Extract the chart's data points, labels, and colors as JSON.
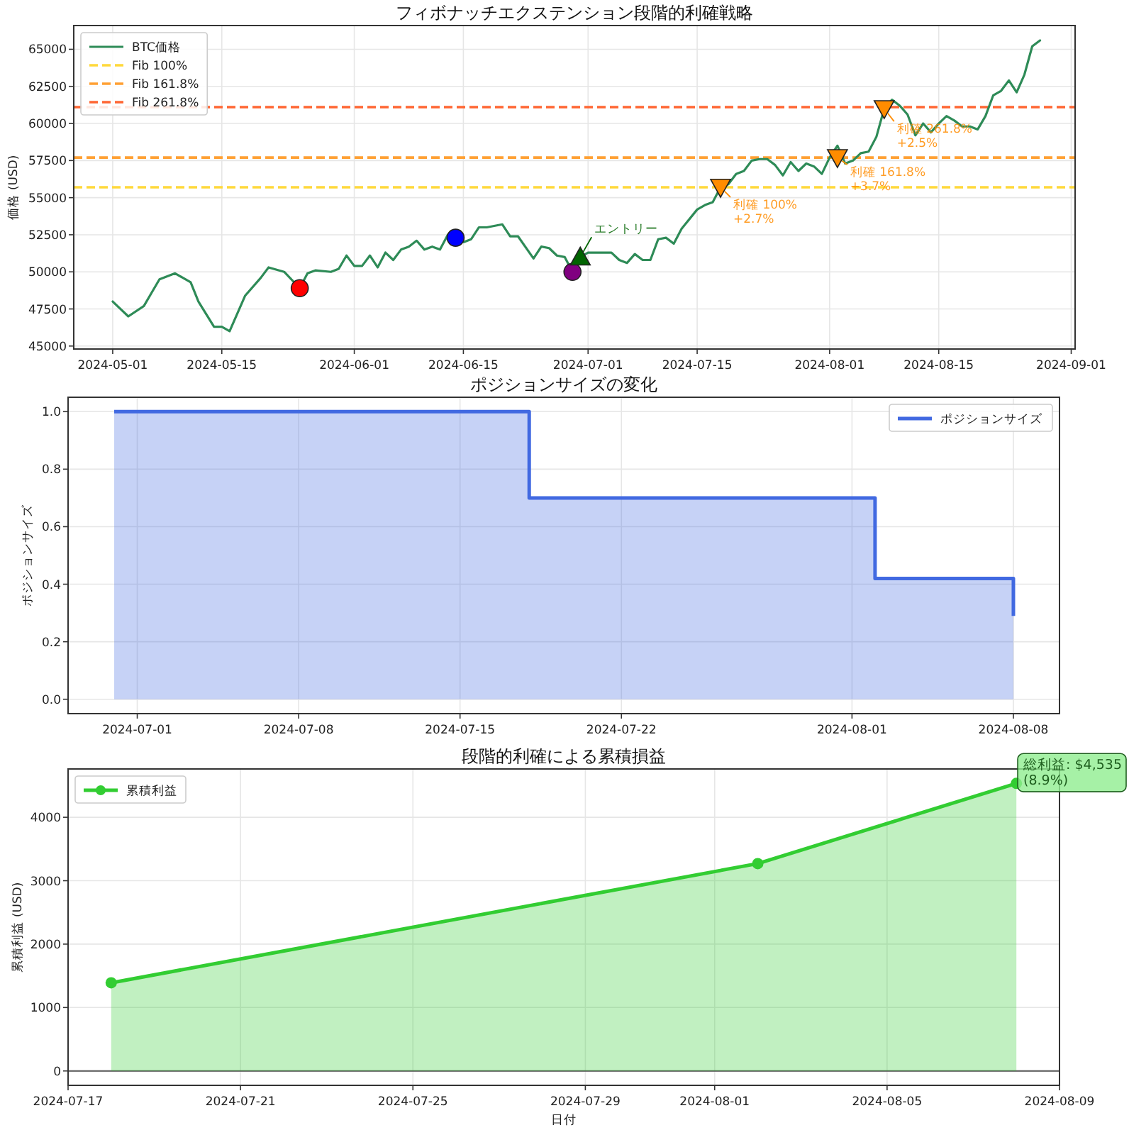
{
  "chart_data": [
    {
      "type": "line",
      "title": "フィボナッチエクステンション段階的利確戦略",
      "ylabel": "価格 (USD)",
      "xlim": [
        "2024-04-26",
        "2024-09-01T12:00"
      ],
      "ylim": [
        44800,
        66600
      ],
      "xticks": [
        "2024-05-01",
        "2024-05-15",
        "2024-06-01",
        "2024-06-15",
        "2024-07-01",
        "2024-07-15",
        "2024-08-01",
        "2024-08-15",
        "2024-09-01"
      ],
      "yticks": [
        45000,
        47500,
        50000,
        52500,
        55000,
        57500,
        60000,
        62500,
        65000
      ],
      "grid": true,
      "legend": "top left",
      "ref_lines": [
        {
          "axis": "y",
          "value": 55700,
          "label": "Fib 100%",
          "color": "#ffd93b",
          "line_style": "dashed"
        },
        {
          "axis": "y",
          "value": 57700,
          "label": "Fib 161.8%",
          "color": "#ffa033",
          "line_style": "dashed"
        },
        {
          "axis": "y",
          "value": 61100,
          "label": "Fib 261.8%",
          "color": "#ff6633",
          "line_style": "dashed"
        }
      ],
      "series": [
        {
          "name": "BTC価格",
          "color": "#2e8b57",
          "x": [
            "2024-05-01",
            "2024-05-03",
            "2024-05-05",
            "2024-05-06",
            "2024-05-07",
            "2024-05-08",
            "2024-05-09",
            "2024-05-11",
            "2024-05-12",
            "2024-05-14",
            "2024-05-15",
            "2024-05-16",
            "2024-05-18",
            "2024-05-20",
            "2024-05-21",
            "2024-05-23",
            "2024-05-25",
            "2024-05-26",
            "2024-05-27",
            "2024-05-29",
            "2024-05-30",
            "2024-05-31",
            "2024-06-01",
            "2024-06-02",
            "2024-06-03",
            "2024-06-04",
            "2024-06-05",
            "2024-06-06",
            "2024-06-07",
            "2024-06-08",
            "2024-06-09",
            "2024-06-10",
            "2024-06-11",
            "2024-06-12",
            "2024-06-13",
            "2024-06-14",
            "2024-06-15",
            "2024-06-16",
            "2024-06-17",
            "2024-06-18",
            "2024-06-20",
            "2024-06-21",
            "2024-06-22",
            "2024-06-24",
            "2024-06-25",
            "2024-06-26",
            "2024-06-27",
            "2024-06-28",
            "2024-06-29",
            "2024-06-30",
            "2024-07-01",
            "2024-07-03",
            "2024-07-04",
            "2024-07-05",
            "2024-07-06",
            "2024-07-07",
            "2024-07-08",
            "2024-07-09",
            "2024-07-10",
            "2024-07-11",
            "2024-07-12",
            "2024-07-13",
            "2024-07-15",
            "2024-07-16",
            "2024-07-17",
            "2024-07-18",
            "2024-07-19",
            "2024-07-20",
            "2024-07-21",
            "2024-07-22",
            "2024-07-23",
            "2024-07-24",
            "2024-07-25",
            "2024-07-26",
            "2024-07-27",
            "2024-07-28",
            "2024-07-29",
            "2024-07-30",
            "2024-07-31",
            "2024-08-01",
            "2024-08-02",
            "2024-08-03",
            "2024-08-04",
            "2024-08-05",
            "2024-08-06",
            "2024-08-07",
            "2024-08-08",
            "2024-08-09",
            "2024-08-10",
            "2024-08-11",
            "2024-08-12",
            "2024-08-13",
            "2024-08-14",
            "2024-08-15",
            "2024-08-16",
            "2024-08-17",
            "2024-08-18",
            "2024-08-19",
            "2024-08-20",
            "2024-08-21",
            "2024-08-22",
            "2024-08-23",
            "2024-08-24",
            "2024-08-25",
            "2024-08-26",
            "2024-08-27",
            "2024-08-28"
          ],
          "values": [
            48000,
            47000,
            47700,
            48600,
            49500,
            49700,
            49900,
            49300,
            48000,
            46300,
            46300,
            46000,
            48400,
            49600,
            50300,
            50000,
            48900,
            49900,
            50100,
            50000,
            50200,
            51100,
            50400,
            50400,
            51100,
            50300,
            51300,
            50800,
            51500,
            51700,
            52100,
            51500,
            51700,
            51500,
            52500,
            52300,
            52000,
            52200,
            53000,
            53000,
            53200,
            52400,
            52400,
            50900,
            51700,
            51600,
            51100,
            51000,
            50000,
            51000,
            51300,
            51300,
            51300,
            50800,
            50600,
            51200,
            50800,
            50800,
            52200,
            52300,
            51900,
            52900,
            54200,
            54500,
            54700,
            55700,
            55900,
            56600,
            56800,
            57500,
            57600,
            57600,
            57200,
            56500,
            57400,
            56800,
            57300,
            57100,
            56600,
            57700,
            58500,
            57300,
            57500,
            58000,
            58100,
            59100,
            61000,
            61600,
            61200,
            60600,
            59200,
            60000,
            59400,
            60000,
            60500,
            60200,
            59800,
            59800,
            59600,
            60500,
            61900,
            62200,
            62900,
            62100,
            63300,
            65200,
            65600
          ]
        },
        {
          "type": "scatter",
          "color": "#ff0000",
          "marker": "circle",
          "x": [
            "2024-05-25"
          ],
          "values": [
            48900
          ]
        },
        {
          "type": "scatter",
          "color": "#0000ff",
          "marker": "circle",
          "x": [
            "2024-06-14"
          ],
          "values": [
            52300
          ]
        },
        {
          "type": "scatter",
          "color": "#800080",
          "marker": "circle",
          "x": [
            "2024-06-29"
          ],
          "values": [
            50000
          ]
        },
        {
          "type": "scatter",
          "color": "#006400",
          "marker": "triangle",
          "x": [
            "2024-06-30"
          ],
          "values": [
            51000
          ]
        },
        {
          "type": "scatter",
          "color": "#ff8c00",
          "marker": "triangle-down",
          "x": [
            "2024-07-18",
            "2024-08-02",
            "2024-08-08"
          ],
          "values": [
            55700,
            57700,
            61000
          ]
        }
      ],
      "annotations": [
        {
          "text": "エントリー",
          "x": "2024-06-30",
          "y": 51000
        },
        {
          "text": "利確 100%\n+2.7%",
          "x": "2024-07-18",
          "y": 55700
        },
        {
          "text": "利確 161.8%\n+3.7%",
          "x": "2024-08-02",
          "y": 57700
        },
        {
          "text": "利確 261.8%\n+2.5%",
          "x": "2024-08-08",
          "y": 61000
        }
      ]
    },
    {
      "type": "area",
      "title": "ポジションサイズの変化",
      "ylabel": "ポジションサイズ",
      "xlim": [
        "2024-06-28",
        "2024-08-10"
      ],
      "ylim": [
        -0.05,
        1.05
      ],
      "xticks": [
        "2024-07-01",
        "2024-07-08",
        "2024-07-15",
        "2024-07-22",
        "2024-08-01",
        "2024-08-08"
      ],
      "yticks": [
        {
          "value": 0,
          "label": "0.0"
        },
        {
          "value": 0.2,
          "label": "0.2"
        },
        {
          "value": 0.4,
          "label": "0.4"
        },
        {
          "value": 0.6,
          "label": "0.6"
        },
        {
          "value": 0.8,
          "label": "0.8"
        },
        {
          "value": 1,
          "label": "1.0"
        }
      ],
      "grid": true,
      "legend": "top right",
      "series": [
        {
          "name": "ポジションサイズ",
          "color": "#4169e1",
          "x": [
            "2024-06-30",
            "2024-07-18",
            "2024-07-18",
            "2024-08-02",
            "2024-08-02",
            "2024-08-08",
            "2024-08-08"
          ],
          "values": [
            1.0,
            1.0,
            0.7,
            0.7,
            0.42,
            0.42,
            0.29
          ]
        }
      ]
    },
    {
      "type": "area",
      "title": "段階的利確による累積損益",
      "xlabel": "日付",
      "ylabel": "累積利益 (USD)",
      "xlim": [
        "2024-07-17",
        "2024-08-09"
      ],
      "ylim": [
        -227,
        4762
      ],
      "xticks": [
        "2024-07-17",
        "2024-07-21",
        "2024-07-25",
        "2024-07-29",
        "2024-08-01",
        "2024-08-05",
        "2024-08-09"
      ],
      "yticks": [
        0,
        1000,
        2000,
        3000,
        4000
      ],
      "grid": true,
      "legend": "top left",
      "marker": "circle",
      "ref_lines": [
        {
          "axis": "y",
          "value": 0,
          "color": "#555555"
        }
      ],
      "series": [
        {
          "name": "累積利益",
          "color": "#32cd32",
          "x": [
            "2024-07-18",
            "2024-08-02",
            "2024-08-08"
          ],
          "values": [
            1390,
            3270,
            4535
          ]
        }
      ],
      "annotations": [
        {
          "text": "総利益: $4,535\n(8.9%)",
          "x": "2024-08-08",
          "y": 4535
        }
      ]
    }
  ]
}
